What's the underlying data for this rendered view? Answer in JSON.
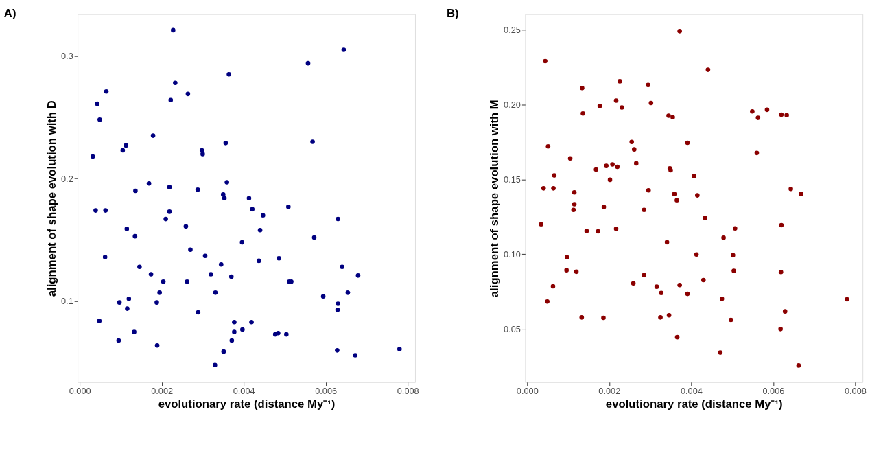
{
  "chart_data": [
    {
      "type": "scatter",
      "title": "A)",
      "xlabel": "evolutionary rate (distance My⁻¹)",
      "ylabel": "alignment of shape evolution with D",
      "marker": "circle",
      "grid": false,
      "xlim": [
        -5e-05,
        0.00818
      ],
      "ylim": [
        0.034,
        0.334
      ],
      "xticks": [
        {
          "value": 0,
          "label": "0.000"
        },
        {
          "value": 0.002,
          "label": "0.002"
        },
        {
          "value": 0.004,
          "label": "0.004"
        },
        {
          "value": 0.006,
          "label": "0.006"
        },
        {
          "value": 0.008,
          "label": "0.008"
        }
      ],
      "yticks": [
        {
          "value": 0.1,
          "label": "0.1"
        },
        {
          "value": 0.2,
          "label": "0.2"
        },
        {
          "value": 0.3,
          "label": "0.3"
        }
      ],
      "x": [
        0.00228,
        0.00364,
        0.00233,
        0.00065,
        0.00264,
        0.00043,
        0.00222,
        0.00049,
        0.00179,
        0.00356,
        0.00113,
        0.00105,
        0.00298,
        0.003,
        0.00032,
        0.00359,
        0.00169,
        0.00219,
        0.00288,
        0.00136,
        0.0035,
        0.00353,
        0.00039,
        0.00063,
        0.00219,
        0.0021,
        0.00259,
        0.00115,
        0.00135,
        0.00396,
        0.0027,
        0.00306,
        0.00062,
        0.00345,
        0.00146,
        0.0032,
        0.00174,
        0.0037,
        0.00204,
        0.00262,
        0.00195,
        0.00331,
        0.0012,
        0.00097,
        0.00188,
        0.00116,
        0.00289,
        0.00048,
        0.00377,
        0.00377,
        0.00397,
        0.00133,
        0.00371,
        0.00095,
        0.00189,
        0.00351,
        0.0033,
        0.00644,
        0.00557,
        0.00568,
        0.00413,
        0.00421,
        0.00509,
        0.00447,
        0.0063,
        0.0044,
        0.00572,
        0.00437,
        0.00486,
        0.0064,
        0.00679,
        0.00511,
        0.00516,
        0.00594,
        0.00654,
        0.0063,
        0.00629,
        0.00419,
        0.00477,
        0.00484,
        0.00504,
        0.00628,
        0.00672,
        0.0078
      ],
      "series": [
        {
          "color": "#000080",
          "values": [
            0.321,
            0.285,
            0.278,
            0.271,
            0.269,
            0.261,
            0.264,
            0.248,
            0.235,
            0.229,
            0.227,
            0.223,
            0.223,
            0.22,
            0.218,
            0.197,
            0.196,
            0.193,
            0.191,
            0.19,
            0.187,
            0.184,
            0.174,
            0.174,
            0.173,
            0.167,
            0.161,
            0.159,
            0.153,
            0.148,
            0.142,
            0.137,
            0.136,
            0.13,
            0.128,
            0.122,
            0.122,
            0.12,
            0.116,
            0.116,
            0.107,
            0.107,
            0.102,
            0.099,
            0.099,
            0.094,
            0.091,
            0.084,
            0.083,
            0.075,
            0.077,
            0.075,
            0.068,
            0.068,
            0.064,
            0.059,
            0.048,
            0.305,
            0.294,
            0.23,
            0.184,
            0.175,
            0.177,
            0.17,
            0.167,
            0.158,
            0.152,
            0.133,
            0.135,
            0.128,
            0.121,
            0.116,
            0.116,
            0.104,
            0.107,
            0.098,
            0.093,
            0.083,
            0.073,
            0.074,
            0.073,
            0.06,
            0.056,
            0.061
          ]
        }
      ]
    },
    {
      "type": "scatter",
      "title": "B)",
      "xlabel": "evolutionary rate (distance My⁻¹)",
      "ylabel": "alignment of shape evolution with M",
      "marker": "circle",
      "grid": false,
      "xlim": [
        -5e-05,
        0.00818
      ],
      "ylim": [
        0.0145,
        0.2603
      ],
      "xticks": [
        {
          "value": 0,
          "label": "0.000"
        },
        {
          "value": 0.002,
          "label": "0.002"
        },
        {
          "value": 0.004,
          "label": "0.004"
        },
        {
          "value": 0.006,
          "label": "0.006"
        },
        {
          "value": 0.008,
          "label": "0.008"
        }
      ],
      "yticks": [
        {
          "value": 0.05,
          "label": "0.05"
        },
        {
          "value": 0.1,
          "label": "0.10"
        },
        {
          "value": 0.15,
          "label": "0.15"
        },
        {
          "value": 0.2,
          "label": "0.20"
        },
        {
          "value": 0.25,
          "label": "0.25"
        }
      ],
      "x": [
        0.00372,
        0.00044,
        0.00134,
        0.00226,
        0.00295,
        0.00217,
        0.00177,
        0.00231,
        0.00302,
        0.00136,
        0.00345,
        0.00355,
        0.00051,
        0.00255,
        0.00261,
        0.00391,
        0.00105,
        0.00266,
        0.00168,
        0.00193,
        0.00208,
        0.0022,
        0.00348,
        0.0035,
        0.00066,
        0.00202,
        0.0004,
        0.00064,
        0.00296,
        0.00115,
        0.00359,
        0.00365,
        0.00115,
        0.00113,
        0.00187,
        0.00285,
        0.00034,
        0.00145,
        0.00173,
        0.00217,
        0.00341,
        0.00097,
        0.00096,
        0.0012,
        0.00285,
        0.00063,
        0.00259,
        0.00316,
        0.00327,
        0.00372,
        0.00391,
        0.00049,
        0.00133,
        0.00186,
        0.00325,
        0.00346,
        0.00366,
        0.00441,
        0.00549,
        0.00585,
        0.00563,
        0.0062,
        0.00633,
        0.0056,
        0.00407,
        0.00415,
        0.00643,
        0.00668,
        0.00434,
        0.0062,
        0.00507,
        0.00479,
        0.00413,
        0.00502,
        0.00504,
        0.00619,
        0.0043,
        0.00475,
        0.0078,
        0.00629,
        0.00497,
        0.00618,
        0.00471,
        0.00662
      ],
      "series": [
        {
          "color": "#8b0000",
          "values": [
            0.249,
            0.229,
            0.211,
            0.2155,
            0.213,
            0.2026,
            0.199,
            0.198,
            0.201,
            0.194,
            0.1925,
            0.1915,
            0.172,
            0.175,
            0.17,
            0.1744,
            0.164,
            0.1607,
            0.1565,
            0.159,
            0.16,
            0.1584,
            0.1573,
            0.1561,
            0.1526,
            0.1497,
            0.144,
            0.144,
            0.1427,
            0.1413,
            0.1402,
            0.136,
            0.1334,
            0.1296,
            0.1315,
            0.1296,
            0.12,
            0.1155,
            0.1153,
            0.117,
            0.108,
            0.098,
            0.0893,
            0.0883,
            0.086,
            0.0786,
            0.0805,
            0.0783,
            0.0741,
            0.0794,
            0.0735,
            0.0684,
            0.0578,
            0.0575,
            0.0578,
            0.0592,
            0.0446,
            0.2232,
            0.1954,
            0.1965,
            0.1911,
            0.1932,
            0.1929,
            0.1676,
            0.1522,
            0.1393,
            0.1436,
            0.1403,
            0.1242,
            0.1194,
            0.1172,
            0.111,
            0.0998,
            0.0993,
            0.0889,
            0.0881,
            0.0827,
            0.0702,
            0.0699,
            0.0618,
            0.0561,
            0.05,
            0.0343,
            0.0257
          ]
        }
      ]
    }
  ]
}
